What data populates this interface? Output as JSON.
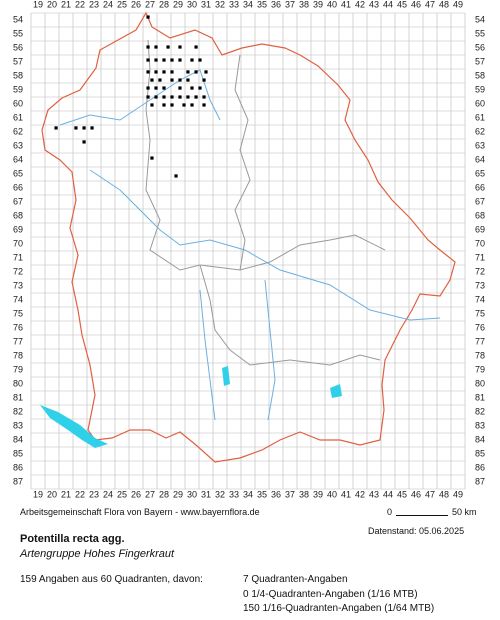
{
  "grid": {
    "columns": [
      19,
      20,
      21,
      22,
      23,
      24,
      25,
      26,
      27,
      28,
      29,
      30,
      31,
      32,
      33,
      34,
      35,
      36,
      37,
      38,
      39,
      40,
      41,
      42,
      43,
      44,
      45,
      46,
      47,
      48,
      49
    ],
    "rows": [
      54,
      55,
      56,
      57,
      58,
      59,
      60,
      61,
      62,
      63,
      64,
      65,
      66,
      67,
      68,
      69,
      70,
      71,
      72,
      73,
      74,
      75,
      76,
      77,
      78,
      79,
      80,
      81,
      82,
      83,
      84,
      85,
      86,
      87
    ]
  },
  "points": [
    [
      26.86,
      53.79
    ],
    [
      26.86,
      55.93
    ],
    [
      27.43,
      55.93
    ],
    [
      28.29,
      55.93
    ],
    [
      29.14,
      55.93
    ],
    [
      30.29,
      55.93
    ],
    [
      26.86,
      56.86
    ],
    [
      27.43,
      56.86
    ],
    [
      28.0,
      56.86
    ],
    [
      28.57,
      56.86
    ],
    [
      29.14,
      56.86
    ],
    [
      30.0,
      56.86
    ],
    [
      30.57,
      56.86
    ],
    [
      26.86,
      57.71
    ],
    [
      27.43,
      57.71
    ],
    [
      28.0,
      57.71
    ],
    [
      28.57,
      57.71
    ],
    [
      29.71,
      57.71
    ],
    [
      30.29,
      57.71
    ],
    [
      31.0,
      57.71
    ],
    [
      27.14,
      58.29
    ],
    [
      27.71,
      58.29
    ],
    [
      28.57,
      58.29
    ],
    [
      29.14,
      58.29
    ],
    [
      29.71,
      58.29
    ],
    [
      30.86,
      58.29
    ],
    [
      26.86,
      58.86
    ],
    [
      27.43,
      58.86
    ],
    [
      28.0,
      58.86
    ],
    [
      29.14,
      58.86
    ],
    [
      30.0,
      58.86
    ],
    [
      30.57,
      58.86
    ],
    [
      26.86,
      59.5
    ],
    [
      27.43,
      59.5
    ],
    [
      28.0,
      59.5
    ],
    [
      28.57,
      59.5
    ],
    [
      29.14,
      59.5
    ],
    [
      29.71,
      59.5
    ],
    [
      30.29,
      59.5
    ],
    [
      30.86,
      59.5
    ],
    [
      27.14,
      60.07
    ],
    [
      28.0,
      60.07
    ],
    [
      28.57,
      60.07
    ],
    [
      29.43,
      60.07
    ],
    [
      30.0,
      60.07
    ],
    [
      30.86,
      60.07
    ],
    [
      20.29,
      61.71
    ],
    [
      21.71,
      61.71
    ],
    [
      22.29,
      61.71
    ],
    [
      22.86,
      61.71
    ],
    [
      22.29,
      62.71
    ],
    [
      27.14,
      63.86
    ],
    [
      28.86,
      65.14
    ]
  ],
  "footer": {
    "credit": "Arbeitsgemeinschaft Flora von Bayern - www.bayernflora.de",
    "scale_start": "0",
    "scale_end": "50 km",
    "date": "Datenstand: 05.06.2025"
  },
  "title": "Potentilla recta agg.",
  "subtitle": "Artengruppe Hohes Fingerkraut",
  "summary": "159 Angaben aus 60 Quadranten, davon:",
  "details": [
    "7 Quadranten-Angaben",
    "0 1/4-Quadranten-Angaben (1/16 MTB)",
    "150 1/16-Quadranten-Angaben (1/64 MTB)"
  ]
}
